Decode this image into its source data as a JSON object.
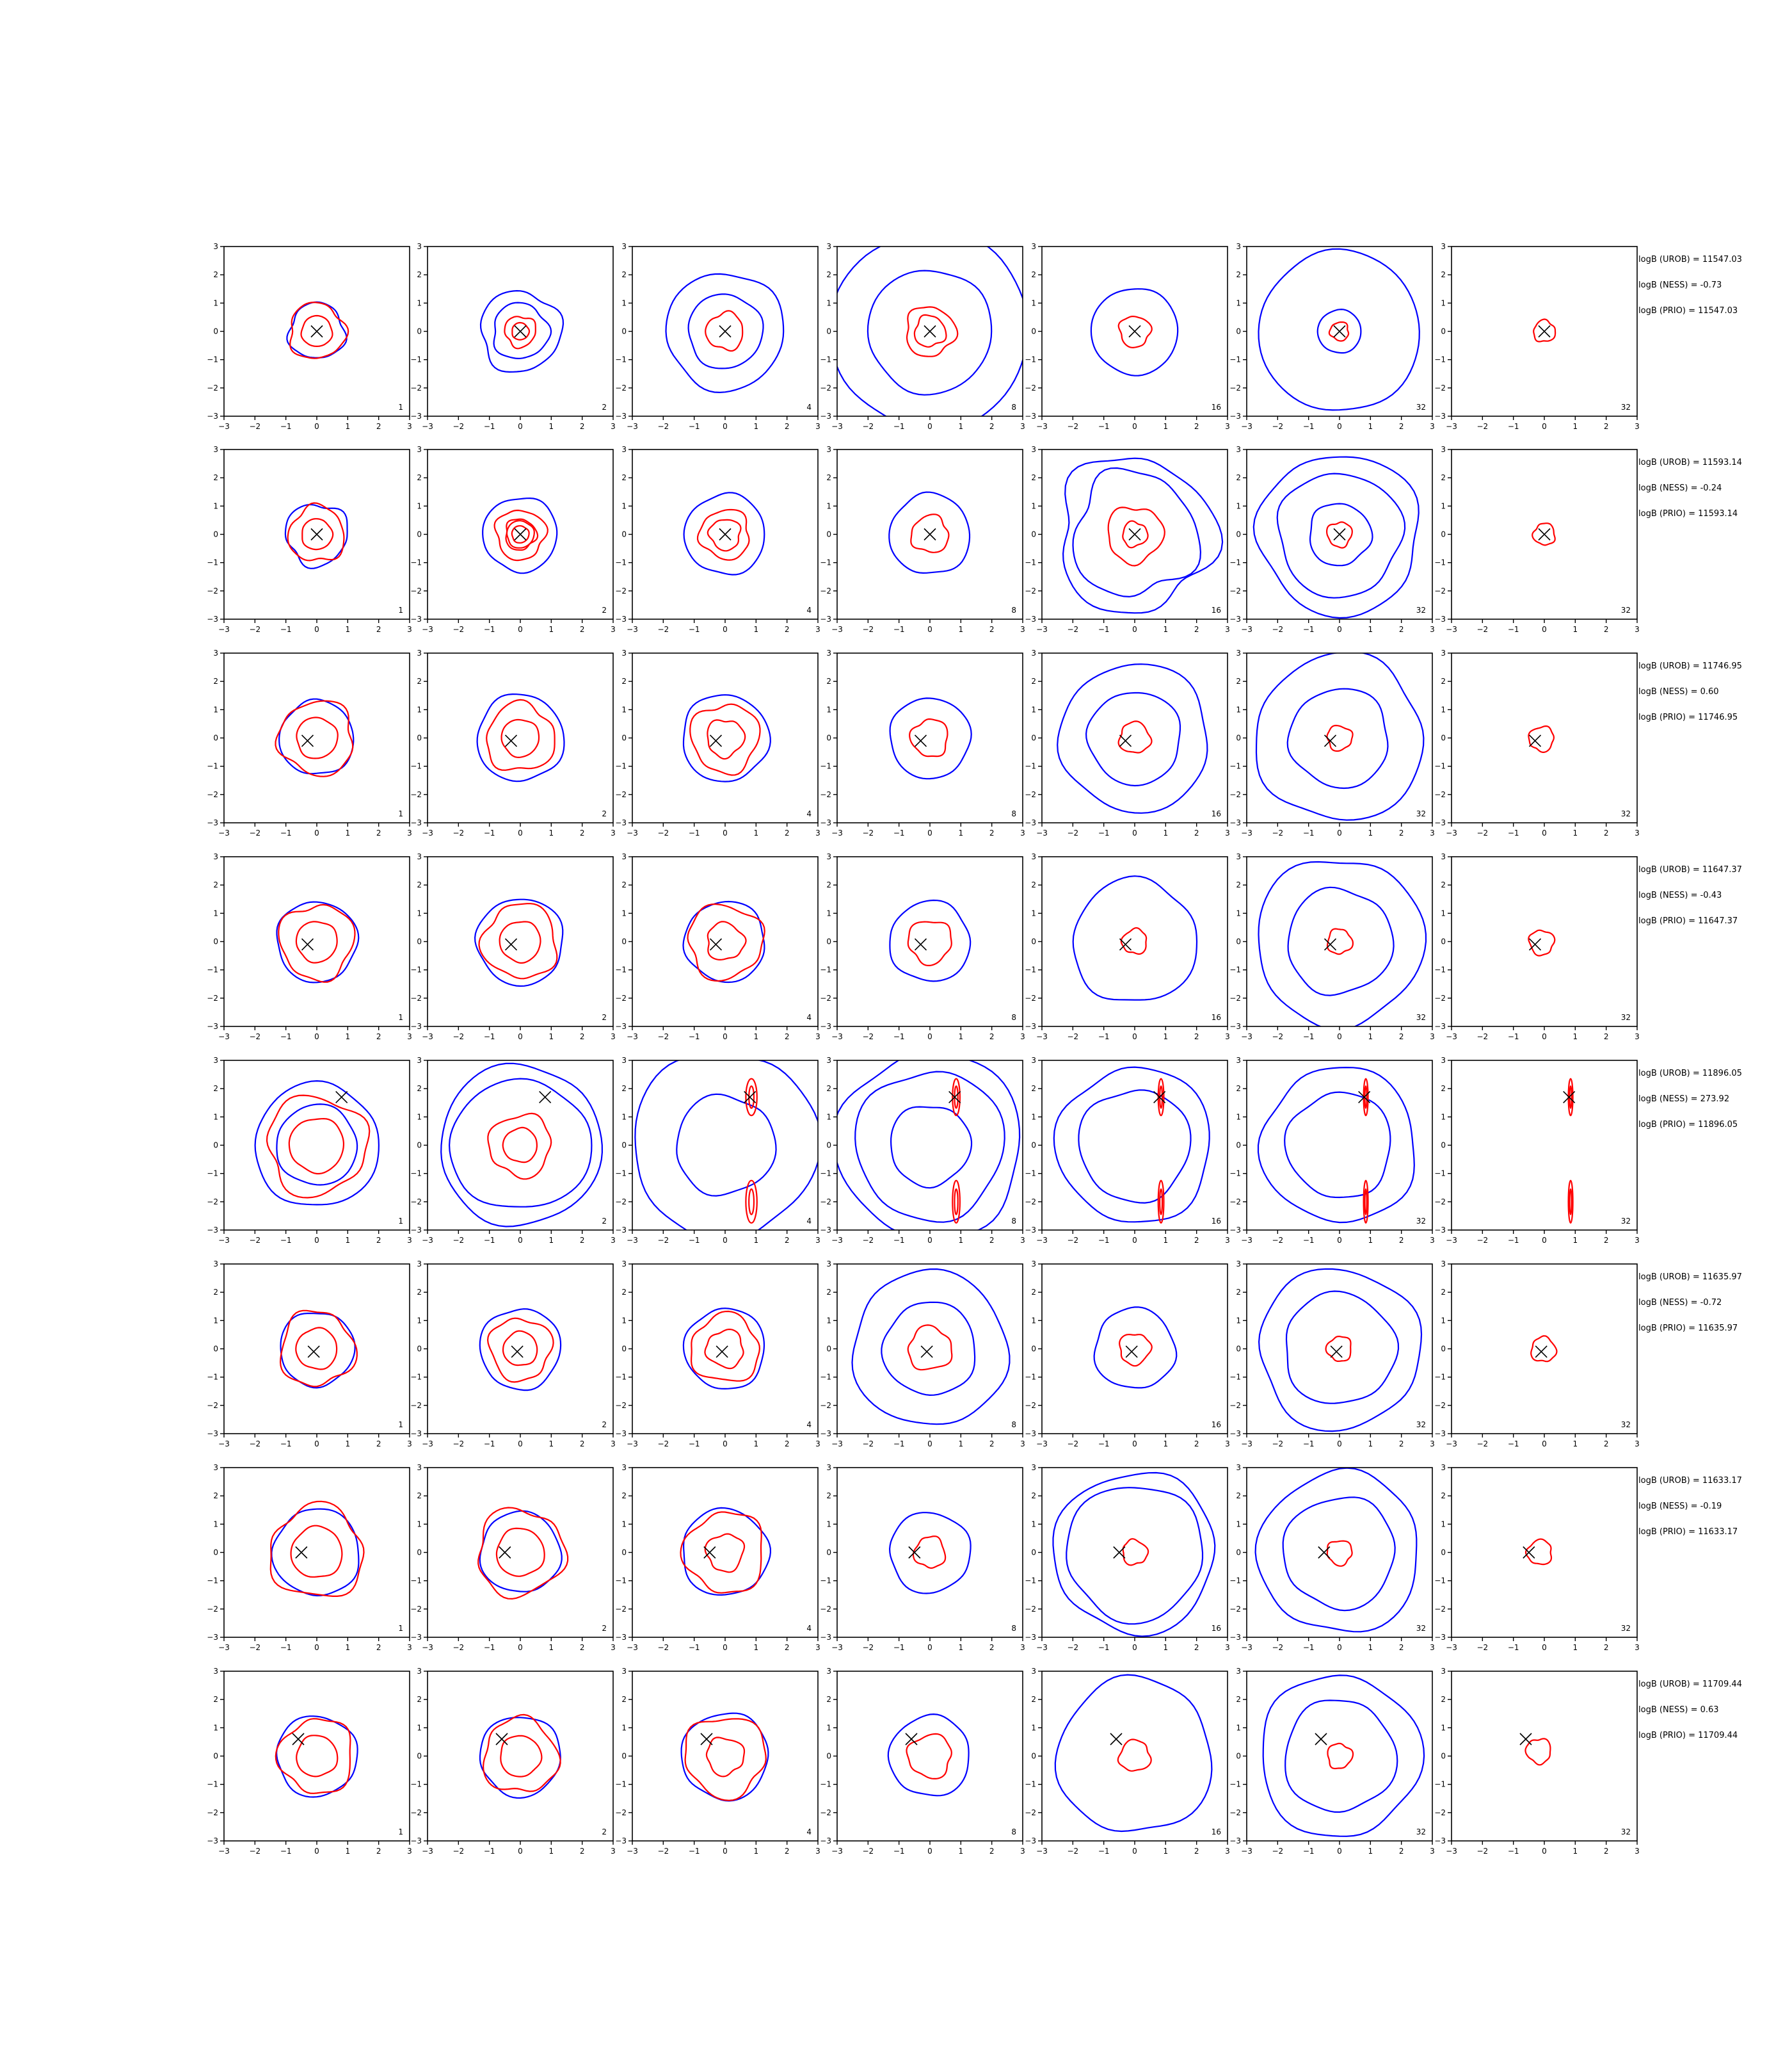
{
  "figure": {
    "colors": {
      "blue": "#0000ff",
      "red": "#ff0000",
      "marker": "#000000",
      "axes": "#000000"
    }
  },
  "chart_data": {
    "type": "contour-grid",
    "xlim": [
      -3,
      3
    ],
    "ylim": [
      -3,
      3
    ],
    "ticks": [
      -3,
      -2,
      -1,
      0,
      1,
      2,
      3
    ],
    "tick_labels": [
      "−3",
      "−2",
      "−1",
      "0",
      "1",
      "2",
      "3"
    ],
    "panel_labels": [
      "1",
      "2",
      "4",
      "8",
      "16",
      "32",
      "32"
    ],
    "grid": false,
    "marker": "x",
    "rows": [
      {
        "marker": [
          0.0,
          0.0
        ],
        "notes": [
          "logB (UROB) = 11547.03",
          "logB (NESS) = -0.73",
          "logB (PRIO) = 11547.03"
        ],
        "blue": [
          [
            [
              0.9
            ],
            [
              1.1,
              1.7,
              2.0
            ]
          ],
          [
            [
              0.9,
              1.3
            ],
            [
              1.0,
              1.8
            ]
          ],
          [
            [
              1.2,
              1.9
            ],
            [
              0.5,
              0.9
            ]
          ],
          [
            [
              2.0,
              3.2
            ],
            [
              0.35,
              1.5
            ]
          ],
          [
            [
              1.4
            ],
            [
              0.25,
              0.6
            ]
          ],
          [
            [
              0.7,
              2.6
            ],
            [
              0.25,
              1.3
            ]
          ],
          [
            [],
            []
          ]
        ],
        "red": [
          [
            [
              0.9
            ],
            [
              0.0
            ]
          ],
          [
            [
              0.5
            ],
            [
              1.0
            ]
          ],
          [
            [
              0.6
            ],
            [
              0.3,
              0.8
            ]
          ],
          [
            [
              0.5,
              0.8
            ],
            [
              0.25,
              0.55
            ]
          ],
          [
            [
              0.5
            ],
            [
              0.25
            ]
          ],
          [
            [
              0.3
            ],
            [
              0.2
            ]
          ],
          [
            [
              0.35
            ],
            [
              0.2
            ]
          ]
        ]
      },
      {
        "marker": [
          0.0,
          0.0
        ],
        "notes": [
          "logB (UROB) = 11593.14",
          "logB (NESS) = -0.24",
          "logB (PRIO) = 11593.14"
        ],
        "blue": [
          [
            [
              1.0
            ],
            [
              1.2
            ]
          ],
          [
            [
              1.2
            ],
            [
              0.5
            ]
          ],
          [
            [
              1.3
            ],
            [
              0.5
            ]
          ],
          [
            [
              1.3
            ],
            [
              0.5
            ]
          ],
          [
            [
              2.0,
              2.5
            ],
            [
              1.4
            ]
          ],
          [
            [
              1.0,
              2.0,
              2.6
            ],
            [
              0.7
            ]
          ],
          [
            [],
            []
          ]
        ],
        "red": [
          [
            [
              0.9
            ],
            [
              0.0
            ]
          ],
          [
            [
              0.5,
              0.8
            ],
            [
              0.3
            ]
          ],
          [
            [
              0.5,
              0.8
            ],
            [
              0.3
            ]
          ],
          [
            [
              0.6
            ],
            [
              0.3
            ]
          ],
          [
            [
              0.4,
              0.9
            ],
            [
              0.2
            ]
          ],
          [
            [
              0.4
            ],
            [
              0.2
            ]
          ],
          [
            [
              0.35
            ],
            [
              0.2
            ]
          ]
        ]
      },
      {
        "marker": [
          -0.3,
          -0.1
        ],
        "notes": [
          "logB (UROB) = 11746.95",
          "logB (NESS) = 0.60",
          "logB (PRIO) = 11746.95"
        ],
        "blue": [
          [
            [
              1.2
            ],
            [
              0.5
            ]
          ],
          [
            [
              1.4
            ],
            [
              0.5
            ]
          ],
          [
            [
              1.4
            ],
            [
              0.5
            ]
          ],
          [
            [
              1.3
            ],
            [
              0.4
            ]
          ],
          [
            [
              1.5,
              2.4
            ],
            [
              0.5
            ]
          ],
          [
            [
              1.6,
              2.7
            ],
            [
              0.6
            ]
          ],
          [
            [],
            []
          ]
        ],
        "red": [
          [
            [
              1.2
            ],
            [
              0.5
            ]
          ],
          [
            [
              1.1
            ],
            [
              0.5
            ]
          ],
          [
            [
              0.6,
              1.1
            ],
            [
              0.4
            ]
          ],
          [
            [
              0.6
            ],
            [
              0.3
            ]
          ],
          [
            [
              0.5
            ],
            [
              0.3
            ]
          ],
          [
            [
              0.4
            ],
            [
              0.3
            ]
          ],
          [
            [
              0.4
            ],
            [
              0.3
            ]
          ]
        ]
      },
      {
        "marker": [
          -0.3,
          -0.1
        ],
        "notes": [
          "logB (UROB) = 11647.37",
          "logB (NESS) = -0.43",
          "logB (PRIO) = 11647.37"
        ],
        "blue": [
          [
            [
              1.3
            ],
            [
              0.5
            ]
          ],
          [
            [
              1.4
            ],
            [
              0.5
            ]
          ],
          [
            [
              1.3
            ],
            [
              0.5
            ]
          ],
          [
            [
              1.3
            ],
            [
              0.5
            ]
          ],
          [
            [
              2.0
            ],
            [
              0.6
            ]
          ],
          [
            [
              1.7,
              2.7
            ],
            [
              0.6
            ]
          ],
          [
            [],
            []
          ]
        ],
        "red": [
          [
            [
              1.2
            ],
            [
              0.5
            ]
          ],
          [
            [
              1.2
            ],
            [
              0.5
            ]
          ],
          [
            [
              0.6,
              1.2
            ],
            [
              0.4
            ]
          ],
          [
            [
              0.7
            ],
            [
              0.3
            ]
          ],
          [
            [
              0.4
            ],
            [
              0.3
            ]
          ],
          [
            [
              0.4
            ],
            [
              0.3
            ]
          ],
          [
            [
              0.4
            ],
            [
              0.3
            ]
          ]
        ]
      },
      {
        "marker": [
          0.8,
          1.7
        ],
        "notes": [
          "logB (UROB) = 11896.05",
          "logB (NESS) = 273.92",
          "logB (PRIO) = 11896.05"
        ],
        "blue": [
          [
            [
              1.3,
              2.0
            ],
            [
              0.4
            ]
          ],
          [
            [
              2.3,
              2.6
            ],
            [
              0.4
            ]
          ],
          [
            [
              1.6,
              3.0
            ],
            [
              0.6
            ]
          ],
          [
            [
              1.3,
              2.4,
              3.0
            ],
            [
              0.6
            ]
          ],
          [
            [
              1.8,
              2.5
            ],
            [
              0.6
            ]
          ],
          [
            [
              1.7,
              2.5
            ],
            [
              0.6
            ]
          ],
          [
            [],
            []
          ]
        ],
        "red": [
          [
            [
              1.6
            ],
            [
              0.4
            ]
          ],
          [
            [
              1.0
            ],
            [
              0.3
            ]
          ],
          [
            [
              0.3
            ],
            [
              0.3
            ]
          ],
          [
            [
              0.2
            ],
            [
              0.3
            ]
          ],
          [
            [
              0.15
            ],
            [
              0.3
            ]
          ],
          [
            [
              0.12
            ],
            [
              0.3
            ]
          ],
          [
            [
              0.12
            ],
            [
              0.3
            ]
          ]
        ]
      },
      {
        "marker": [
          -0.1,
          -0.1
        ],
        "notes": [
          "logB (UROB) = 11635.97",
          "logB (NESS) = -0.72",
          "logB (PRIO) = 11635.97"
        ],
        "blue": [
          [
            [
              1.2
            ],
            [
              0.5
            ]
          ],
          [
            [
              1.3
            ],
            [
              0.5
            ]
          ],
          [
            [
              1.3
            ],
            [
              0.5
            ]
          ],
          [
            [
              1.5,
              2.5
            ],
            [
              0.5
            ]
          ],
          [
            [
              1.3
            ],
            [
              0.6
            ]
          ],
          [
            [
              1.8,
              2.6
            ],
            [
              0.6
            ]
          ],
          [
            [],
            []
          ]
        ],
        "red": [
          [
            [
              1.2
            ],
            [
              0.5
            ]
          ],
          [
            [
              1.0
            ],
            [
              0.5
            ]
          ],
          [
            [
              0.6,
              1.1
            ],
            [
              0.4
            ]
          ],
          [
            [
              0.7
            ],
            [
              0.3
            ]
          ],
          [
            [
              0.5
            ],
            [
              0.3
            ]
          ],
          [
            [
              0.4
            ],
            [
              0.3
            ]
          ],
          [
            [
              0.4
            ],
            [
              0.3
            ]
          ]
        ]
      },
      {
        "marker": [
          -0.5,
          0.0
        ],
        "notes": [
          "logB (UROB) = 11633.17",
          "logB (NESS) = -0.19",
          "logB (PRIO) = 11633.17"
        ],
        "blue": [
          [
            [
              1.4
            ],
            [
              0.5
            ]
          ],
          [
            [
              1.3
            ],
            [
              0.5
            ]
          ],
          [
            [
              1.4
            ],
            [
              0.5
            ]
          ],
          [
            [
              1.3
            ],
            [
              0.5
            ]
          ],
          [
            [
              2.2,
              2.6
            ],
            [
              0.6
            ]
          ],
          [
            [
              1.8,
              2.6
            ],
            [
              0.6
            ]
          ],
          [
            [],
            []
          ]
        ],
        "red": [
          [
            [
              1.5
            ],
            [
              0.5
            ]
          ],
          [
            [
              1.4
            ],
            [
              0.4
            ]
          ],
          [
            [
              0.6,
              1.3
            ],
            [
              0.4
            ]
          ],
          [
            [
              0.5
            ],
            [
              0.3
            ]
          ],
          [
            [
              0.4
            ],
            [
              0.3
            ]
          ],
          [
            [
              0.4
            ],
            [
              0.3
            ]
          ],
          [
            [
              0.4
            ],
            [
              0.3
            ]
          ]
        ]
      },
      {
        "marker": [
          -0.6,
          0.6
        ],
        "notes": [
          "logB (UROB) = 11709.44",
          "logB (NESS) = 0.63",
          "logB (PRIO) = 11709.44"
        ],
        "blue": [
          [
            [
              1.3
            ],
            [
              0.5
            ]
          ],
          [
            [
              1.3
            ],
            [
              0.5
            ]
          ],
          [
            [
              1.4
            ],
            [
              0.5
            ]
          ],
          [
            [
              1.3
            ],
            [
              0.5
            ]
          ],
          [
            [
              2.5
            ],
            [
              0.6
            ]
          ],
          [
            [
              1.8,
              2.6
            ],
            [
              0.6
            ]
          ],
          [
            [],
            []
          ]
        ],
        "red": [
          [
            [
              1.2
            ],
            [
              0.5
            ]
          ],
          [
            [
              1.2
            ],
            [
              0.5
            ]
          ],
          [
            [
              0.6,
              1.3
            ],
            [
              0.4
            ]
          ],
          [
            [
              0.7
            ],
            [
              0.3
            ]
          ],
          [
            [
              0.5
            ],
            [
              0.3
            ]
          ],
          [
            [
              0.4
            ],
            [
              0.3
            ]
          ],
          [
            [
              0.4
            ],
            [
              0.3
            ]
          ]
        ]
      }
    ]
  }
}
